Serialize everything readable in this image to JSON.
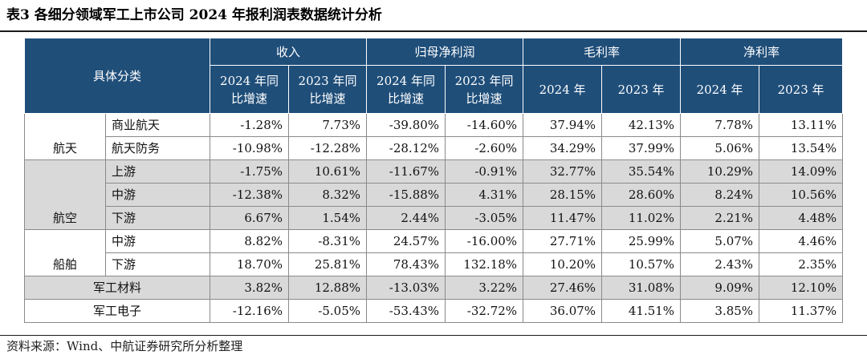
{
  "caption": "表3 各细分领域军工上市公司 2024 年报利润表数据统计分析",
  "source": "资料来源：Wind、中航证券研究所分析整理",
  "table": {
    "header": {
      "category": "具体分类",
      "groups": {
        "revenue": "收入",
        "net_profit_parent": "归母净利润",
        "gross_margin": "毛利率",
        "net_margin": "净利率"
      },
      "growth_2024": [
        "2024 年同",
        "比增速"
      ],
      "growth_2023": [
        "2023 年同",
        "比增速"
      ],
      "year_2024": "2024 年",
      "year_2023": "2023 年"
    },
    "groups": {
      "aerospace": "航天",
      "aviation": "航空",
      "shipbuilding": "船舶"
    },
    "rows": [
      {
        "sub": "商业航天",
        "values": [
          "-1.28%",
          "7.73%",
          "-39.80%",
          "-14.60%",
          "37.94%",
          "42.13%",
          "7.78%",
          "13.11%"
        ]
      },
      {
        "sub": "航天防务",
        "values": [
          "-10.98%",
          "-12.28%",
          "-28.12%",
          "-2.60%",
          "34.29%",
          "37.99%",
          "5.06%",
          "13.54%"
        ]
      },
      {
        "sub": "上游",
        "values": [
          "-1.75%",
          "10.61%",
          "-11.67%",
          "-0.91%",
          "32.77%",
          "35.54%",
          "10.29%",
          "14.09%"
        ]
      },
      {
        "sub": "中游",
        "values": [
          "-12.38%",
          "8.32%",
          "-15.88%",
          "4.31%",
          "28.15%",
          "28.60%",
          "8.24%",
          "10.56%"
        ]
      },
      {
        "sub": "下游",
        "values": [
          "6.67%",
          "1.54%",
          "2.44%",
          "-3.05%",
          "11.47%",
          "11.02%",
          "2.21%",
          "4.48%"
        ]
      },
      {
        "sub": "中游",
        "values": [
          "8.82%",
          "-8.31%",
          "24.57%",
          "-16.00%",
          "27.71%",
          "25.99%",
          "5.07%",
          "4.46%"
        ]
      },
      {
        "sub": "下游",
        "values": [
          "18.70%",
          "25.81%",
          "78.43%",
          "132.18%",
          "10.20%",
          "10.57%",
          "2.43%",
          "2.35%"
        ]
      },
      {
        "category": "军工材料",
        "values": [
          "3.82%",
          "12.88%",
          "-13.03%",
          "3.22%",
          "27.46%",
          "31.08%",
          "9.09%",
          "12.10%"
        ]
      },
      {
        "category": "军工电子",
        "values": [
          "-12.16%",
          "-5.05%",
          "-53.43%",
          "-32.72%",
          "36.07%",
          "41.51%",
          "3.85%",
          "11.37%"
        ]
      }
    ]
  }
}
